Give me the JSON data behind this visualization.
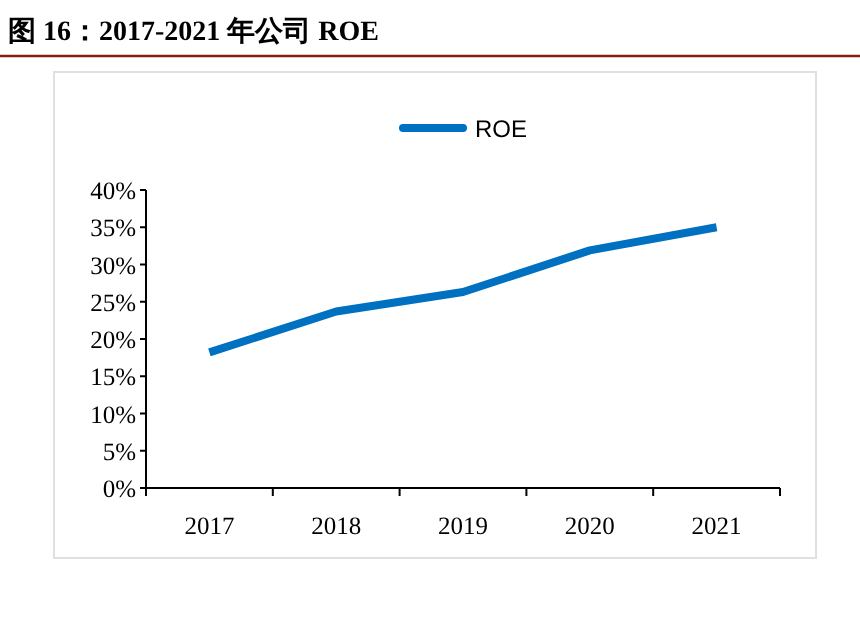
{
  "chart_data": {
    "type": "line",
    "title": "图 16：2017-2021 年公司 ROE",
    "categories": [
      "2017",
      "2018",
      "2019",
      "2020",
      "2021"
    ],
    "series": [
      {
        "name": "ROE",
        "color": "#0070c0",
        "values": [
          18.2,
          23.7,
          26.3,
          31.9,
          35.0
        ]
      }
    ],
    "ylim": [
      0,
      40
    ],
    "yticks": [
      {
        "value": 0,
        "label": "0%"
      },
      {
        "value": 5,
        "label": "5%"
      },
      {
        "value": 10,
        "label": "10%"
      },
      {
        "value": 15,
        "label": "15%"
      },
      {
        "value": 20,
        "label": "20%"
      },
      {
        "value": 25,
        "label": "25%"
      },
      {
        "value": 30,
        "label": "30%"
      },
      {
        "value": 35,
        "label": "35%"
      },
      {
        "value": 40,
        "label": "40%"
      }
    ],
    "legend": "top",
    "marker": "none",
    "line_style": "solid"
  }
}
